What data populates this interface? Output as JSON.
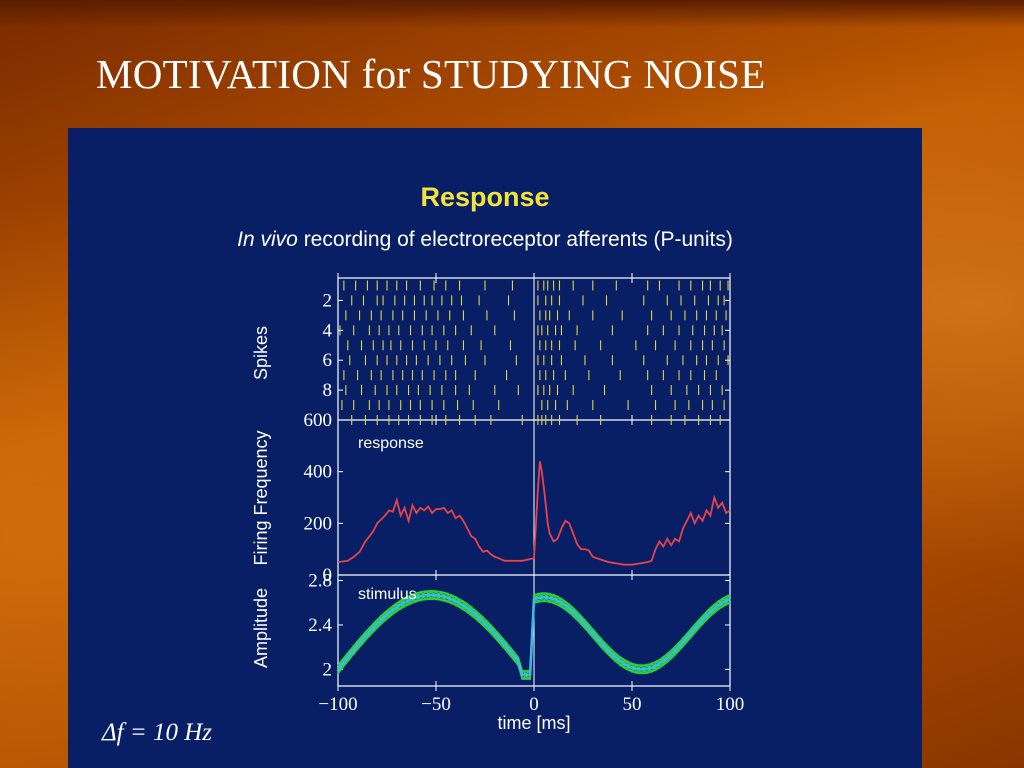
{
  "slide": {
    "title": "MOTIVATION for STUDYING NOISE"
  },
  "figure": {
    "heading": "Response",
    "subtitle_italic": "In vivo",
    "subtitle_rest": " recording of electroreceptor afferents (P-units)",
    "delta_f_label": "Δf = 10 Hz",
    "heading_color": "#f2e43a",
    "panel_color": "#081f66"
  },
  "chart_data": [
    {
      "type": "scatter",
      "name": "spike-raster",
      "ylabel": "Spikes",
      "yticks": [
        2,
        4,
        6,
        8
      ],
      "ylim": [
        0.5,
        10
      ],
      "xlim": [
        -100,
        100
      ],
      "trials": [
        [
          -97,
          -91,
          -85,
          -80,
          -75,
          -70,
          -65,
          -58,
          -51,
          -45,
          -38,
          -25,
          -11,
          2,
          5,
          7,
          10,
          13,
          20,
          30,
          42,
          58,
          64,
          74,
          80,
          86,
          90,
          95,
          99
        ],
        [
          -93,
          -87,
          -80,
          -77,
          -71,
          -66,
          -61,
          -56,
          -52,
          -47,
          -42,
          -37,
          -28,
          -13,
          2,
          6,
          9,
          13,
          25,
          37,
          56,
          68,
          75,
          82,
          89,
          94,
          97
        ],
        [
          -96,
          -89,
          -83,
          -78,
          -72,
          -67,
          -61,
          -55,
          -49,
          -43,
          -36,
          -24,
          -10,
          3,
          6,
          8,
          12,
          18,
          30,
          45,
          60,
          70,
          77,
          83,
          88,
          93,
          98
        ],
        [
          -99,
          -92,
          -84,
          -79,
          -74,
          -69,
          -63,
          -57,
          -52,
          -46,
          -40,
          -32,
          -20,
          2,
          4,
          7,
          11,
          14,
          22,
          40,
          58,
          66,
          74,
          81,
          87,
          92,
          96
        ],
        [
          -95,
          -88,
          -82,
          -77,
          -73,
          -68,
          -62,
          -56,
          -50,
          -44,
          -36,
          -27,
          -12,
          3,
          6,
          9,
          13,
          21,
          34,
          52,
          62,
          72,
          80,
          86,
          91,
          97
        ],
        [
          -94,
          -86,
          -80,
          -75,
          -70,
          -65,
          -60,
          -54,
          -48,
          -42,
          -35,
          -25,
          -9,
          2,
          5,
          9,
          14,
          26,
          40,
          56,
          68,
          76,
          83,
          88,
          94,
          99
        ],
        [
          -97,
          -90,
          -83,
          -78,
          -72,
          -67,
          -62,
          -57,
          -51,
          -45,
          -40,
          -30,
          -14,
          3,
          6,
          10,
          16,
          28,
          44,
          58,
          66,
          74,
          80,
          87,
          93
        ],
        [
          -96,
          -88,
          -81,
          -75,
          -70,
          -64,
          -59,
          -53,
          -47,
          -40,
          -33,
          -20,
          -8,
          2,
          5,
          8,
          12,
          20,
          36,
          60,
          70,
          78,
          84,
          90,
          96
        ],
        [
          -98,
          -92,
          -84,
          -79,
          -74,
          -68,
          -63,
          -58,
          -52,
          -46,
          -39,
          -31,
          -18,
          4,
          7,
          11,
          17,
          30,
          48,
          62,
          72,
          79,
          86,
          91,
          97
        ],
        [
          -93,
          -86,
          -80,
          -74,
          -69,
          -64,
          -58,
          -52,
          -45,
          -38,
          -30,
          -22,
          -6,
          2,
          4,
          6,
          9,
          13,
          22,
          34,
          60,
          70,
          77,
          84,
          90,
          95
        ]
      ]
    },
    {
      "type": "line",
      "name": "response",
      "annotation": "response",
      "ylabel": "Firing Frequency",
      "ylim": [
        0,
        600
      ],
      "yticks": [
        0,
        200,
        400,
        600
      ],
      "xlim": [
        -100,
        100
      ],
      "x": [
        -100,
        -95,
        -92,
        -89,
        -86,
        -84,
        -82,
        -80,
        -78,
        -76,
        -74,
        -72,
        -70,
        -68,
        -66,
        -64,
        -62,
        -60,
        -58,
        -56,
        -54,
        -52,
        -50,
        -48,
        -46,
        -44,
        -42,
        -40,
        -38,
        -36,
        -34,
        -32,
        -30,
        -28,
        -26,
        -24,
        -22,
        -20,
        -18,
        -15,
        -12,
        -9,
        -6,
        -3,
        0,
        1,
        2,
        3,
        4,
        5,
        6,
        7,
        8,
        10,
        12,
        14,
        16,
        18,
        20,
        22,
        24,
        26,
        28,
        30,
        34,
        38,
        42,
        46,
        50,
        54,
        58,
        60,
        62,
        64,
        66,
        68,
        70,
        72,
        74,
        76,
        78,
        80,
        82,
        84,
        86,
        88,
        90,
        92,
        94,
        96,
        98,
        100
      ],
      "y": [
        50,
        55,
        70,
        90,
        130,
        150,
        170,
        200,
        215,
        230,
        250,
        245,
        290,
        230,
        260,
        210,
        270,
        240,
        260,
        250,
        265,
        240,
        255,
        255,
        260,
        240,
        250,
        220,
        230,
        210,
        180,
        150,
        140,
        110,
        90,
        95,
        80,
        70,
        65,
        55,
        55,
        55,
        55,
        60,
        65,
        200,
        330,
        440,
        400,
        340,
        270,
        200,
        160,
        130,
        140,
        180,
        210,
        200,
        160,
        120,
        100,
        100,
        95,
        70,
        60,
        50,
        45,
        40,
        40,
        45,
        50,
        55,
        100,
        130,
        110,
        140,
        115,
        140,
        130,
        180,
        210,
        240,
        200,
        230,
        210,
        250,
        230,
        300,
        260,
        280,
        240,
        250
      ]
    },
    {
      "type": "line",
      "name": "stimulus",
      "annotation": "stimulus",
      "ylabel": "Amplitude",
      "ylim": [
        1.85,
        2.85
      ],
      "yticks": [
        2,
        2.4,
        2.8
      ],
      "xlim": [
        -100,
        100
      ],
      "xticks": [
        -100,
        -50,
        0,
        50,
        100
      ],
      "xticklabels": [
        "−100",
        "−50",
        "0",
        "50",
        "100"
      ],
      "xlabel": "time [ms]",
      "series": [
        {
          "name": "mean",
          "color": "#3db8e8"
        },
        {
          "name": "trials",
          "color": "#2fd93a"
        }
      ]
    }
  ]
}
